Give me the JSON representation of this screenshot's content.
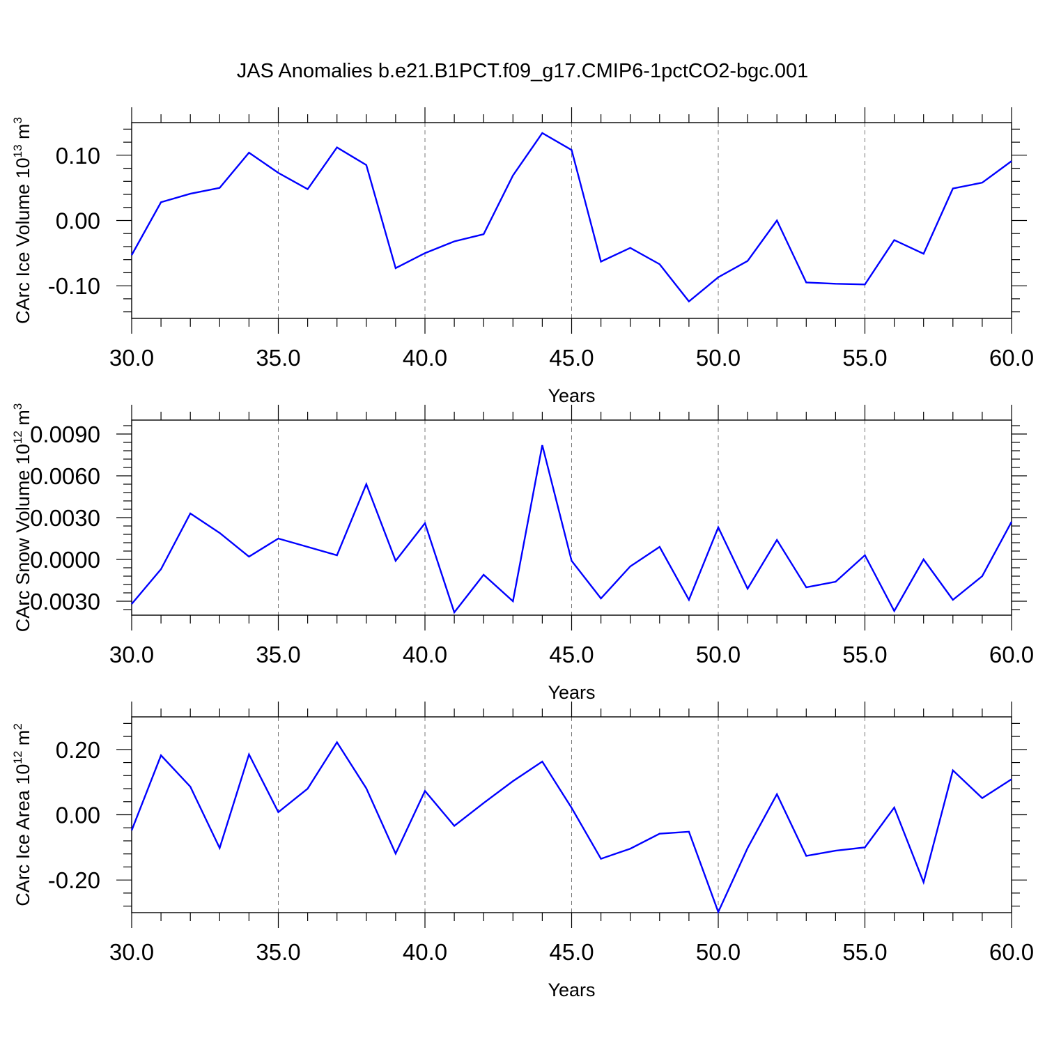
{
  "title": "JAS Anomalies b.e21.B1PCT.f09_g17.CMIP6-1pctCO2-bgc.001",
  "colors": {
    "line": "#0000ff",
    "axis": "#000000",
    "grid": "#777777"
  },
  "chart_data": [
    {
      "type": "line",
      "xlabel": "Years",
      "ylabel": "CArc Ice Volume 10",
      "ylabel_sup": "13",
      "ylabel_unit": " m",
      "ylabel_unit_sup": "3",
      "xlim": [
        30,
        60
      ],
      "ylim": [
        -0.15,
        0.15
      ],
      "x_ticks": [
        30,
        35,
        40,
        45,
        50,
        55,
        60
      ],
      "x_tick_labels": [
        "30.0",
        "35.0",
        "40.0",
        "45.0",
        "50.0",
        "55.0",
        "60.0"
      ],
      "y_ticks": [
        -0.1,
        0.0,
        0.1
      ],
      "y_tick_labels": [
        "-0.10",
        "0.00",
        "0.10"
      ],
      "x": [
        30,
        31,
        32,
        33,
        34,
        35,
        36,
        37,
        38,
        39,
        40,
        41,
        42,
        43,
        44,
        45,
        46,
        47,
        48,
        49,
        50,
        51,
        52,
        53,
        54,
        55,
        56,
        57,
        58,
        59,
        60
      ],
      "series": [
        {
          "values": [
            -0.053,
            0.028,
            0.041,
            0.05,
            0.104,
            0.073,
            0.048,
            0.112,
            0.085,
            -0.073,
            -0.05,
            -0.032,
            -0.021,
            0.069,
            0.134,
            0.108,
            -0.063,
            -0.042,
            -0.067,
            -0.124,
            -0.087,
            -0.062,
            0.0,
            -0.095,
            -0.097,
            -0.098,
            -0.03,
            -0.051,
            0.049,
            0.058,
            0.091
          ]
        }
      ]
    },
    {
      "type": "line",
      "xlabel": "Years",
      "ylabel": "CArc Snow Volume 10",
      "ylabel_sup": "12",
      "ylabel_unit": " m",
      "ylabel_unit_sup": "3",
      "xlim": [
        30,
        60
      ],
      "ylim": [
        -0.004,
        0.01
      ],
      "x_ticks": [
        30,
        35,
        40,
        45,
        50,
        55,
        60
      ],
      "x_tick_labels": [
        "30.0",
        "35.0",
        "40.0",
        "45.0",
        "50.0",
        "55.0",
        "60.0"
      ],
      "y_ticks": [
        -0.003,
        0.0,
        0.003,
        0.006,
        0.009
      ],
      "y_tick_labels": [
        "-0.0030",
        "0.0000",
        "0.0030",
        "0.0060",
        "0.0090"
      ],
      "x": [
        30,
        31,
        32,
        33,
        34,
        35,
        36,
        37,
        38,
        39,
        40,
        41,
        42,
        43,
        44,
        45,
        46,
        47,
        48,
        49,
        50,
        51,
        52,
        53,
        54,
        55,
        56,
        57,
        58,
        59,
        60
      ],
      "series": [
        {
          "values": [
            -0.0032,
            -0.0007,
            0.0033,
            0.0019,
            0.0002,
            0.0015,
            0.0009,
            0.0003,
            0.0054,
            -0.0001,
            0.0026,
            -0.0038,
            -0.0011,
            -0.003,
            0.0082,
            -0.0001,
            -0.0028,
            -0.0005,
            0.0009,
            -0.0029,
            0.0023,
            -0.0021,
            0.0014,
            -0.002,
            -0.0016,
            0.0003,
            -0.0037,
            0.0,
            -0.0029,
            -0.0012,
            0.0027
          ]
        }
      ]
    },
    {
      "type": "line",
      "xlabel": "Years",
      "ylabel": "CArc Ice Area 10",
      "ylabel_sup": "12",
      "ylabel_unit": " m",
      "ylabel_unit_sup": "2",
      "xlim": [
        30,
        60
      ],
      "ylim": [
        -0.3,
        0.3
      ],
      "x_ticks": [
        30,
        35,
        40,
        45,
        50,
        55,
        60
      ],
      "x_tick_labels": [
        "30.0",
        "35.0",
        "40.0",
        "45.0",
        "50.0",
        "55.0",
        "60.0"
      ],
      "y_ticks": [
        -0.2,
        0.0,
        0.2
      ],
      "y_tick_labels": [
        "-0.20",
        "0.00",
        "0.20"
      ],
      "x": [
        30,
        31,
        32,
        33,
        34,
        35,
        36,
        37,
        38,
        39,
        40,
        41,
        42,
        43,
        44,
        45,
        46,
        47,
        48,
        49,
        50,
        51,
        52,
        53,
        54,
        55,
        56,
        57,
        58,
        59,
        60
      ],
      "series": [
        {
          "values": [
            -0.048,
            0.182,
            0.086,
            -0.102,
            0.185,
            0.008,
            0.08,
            0.222,
            0.081,
            -0.119,
            0.073,
            -0.034,
            0.036,
            0.103,
            0.163,
            0.021,
            -0.135,
            -0.104,
            -0.058,
            -0.052,
            -0.298,
            -0.102,
            0.063,
            -0.126,
            -0.11,
            -0.1,
            0.022,
            -0.207,
            0.136,
            0.051,
            0.109
          ]
        }
      ]
    }
  ]
}
